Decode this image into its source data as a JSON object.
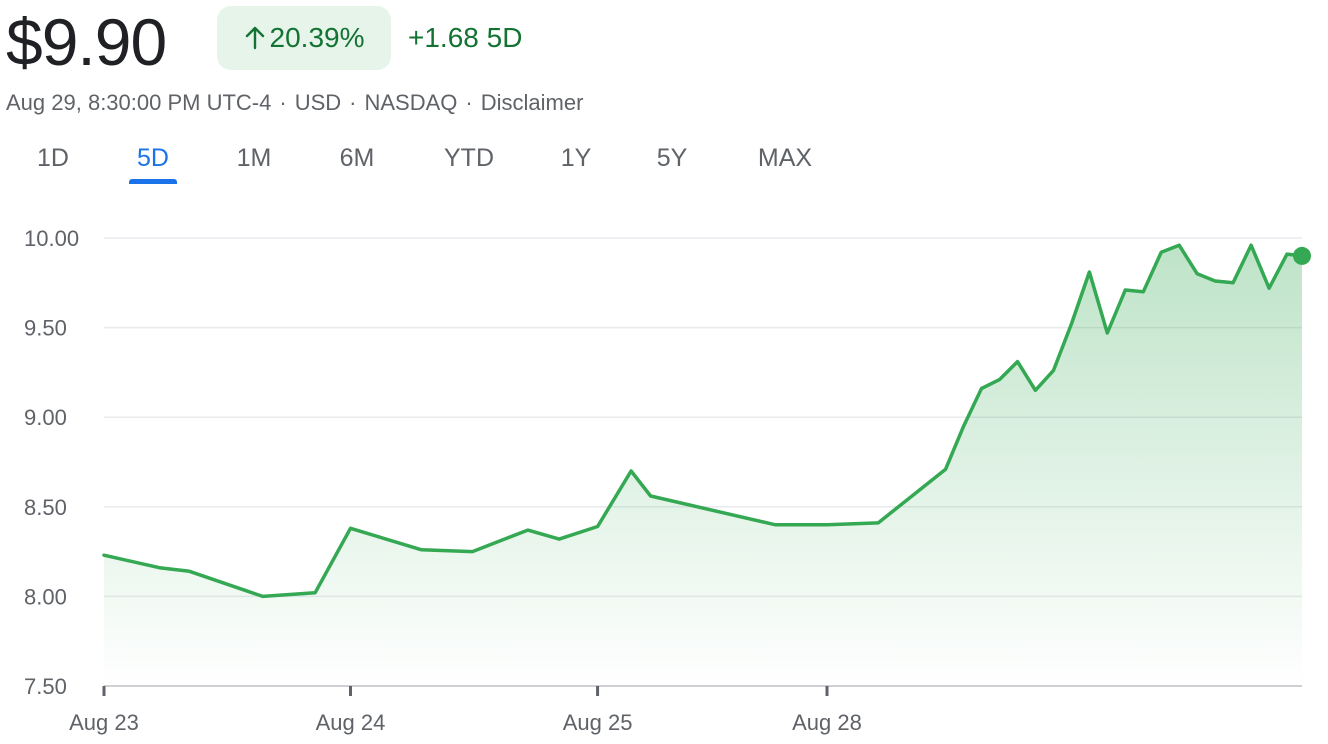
{
  "header": {
    "price": "$9.90",
    "pct_change": "20.39%",
    "abs_change": "+1.68 5D",
    "trend_color": "#137333"
  },
  "meta": {
    "timestamp": "Aug 29, 8:30:00 PM UTC-4",
    "currency": "USD",
    "exchange": "NASDAQ",
    "disclaimer": "Disclaimer",
    "separator": "·"
  },
  "tabs": [
    {
      "label": "1D",
      "active": false
    },
    {
      "label": "5D",
      "active": true
    },
    {
      "label": "1M",
      "active": false
    },
    {
      "label": "6M",
      "active": false
    },
    {
      "label": "YTD",
      "active": false
    },
    {
      "label": "1Y",
      "active": false
    },
    {
      "label": "5Y",
      "active": false
    },
    {
      "label": "MAX",
      "active": false
    }
  ],
  "icons": {
    "up_arrow": "arrow-up-icon"
  },
  "colors": {
    "line": "#34a853",
    "fill_top": "#34a853",
    "active_tab": "#1a73e8",
    "pill_bg": "#e6f4ea"
  },
  "chart_data": {
    "type": "area",
    "ylim": [
      7.5,
      10.0
    ],
    "yticks": [
      "10.00",
      "9.50",
      "9.00",
      "8.50",
      "8.00",
      "7.50"
    ],
    "xtick_labels": [
      "Aug 23",
      "Aug 24",
      "Aug 25",
      "Aug 28"
    ],
    "xtick_positions": [
      0,
      8.23,
      16.48,
      24.14
    ],
    "x_max": 40,
    "grid": true,
    "values": [
      [
        0,
        8.23
      ],
      [
        1.85,
        8.16
      ],
      [
        2.85,
        8.14
      ],
      [
        5.3,
        8.0
      ],
      [
        7.05,
        8.02
      ],
      [
        8.23,
        8.38
      ],
      [
        10.6,
        8.26
      ],
      [
        12.3,
        8.25
      ],
      [
        14.15,
        8.37
      ],
      [
        15.2,
        8.32
      ],
      [
        16.48,
        8.39
      ],
      [
        17.6,
        8.7
      ],
      [
        18.25,
        8.56
      ],
      [
        22.4,
        8.4
      ],
      [
        24.14,
        8.4
      ],
      [
        25.85,
        8.41
      ],
      [
        28.1,
        8.71
      ],
      [
        28.7,
        8.95
      ],
      [
        29.3,
        9.16
      ],
      [
        29.9,
        9.21
      ],
      [
        30.5,
        9.31
      ],
      [
        31.1,
        9.15
      ],
      [
        31.7,
        9.26
      ],
      [
        32.3,
        9.52
      ],
      [
        32.9,
        9.81
      ],
      [
        33.5,
        9.47
      ],
      [
        34.1,
        9.71
      ],
      [
        34.7,
        9.7
      ],
      [
        35.3,
        9.92
      ],
      [
        35.9,
        9.96
      ],
      [
        36.5,
        9.8
      ],
      [
        37.1,
        9.76
      ],
      [
        37.7,
        9.75
      ],
      [
        38.3,
        9.96
      ],
      [
        38.9,
        9.72
      ],
      [
        39.5,
        9.91
      ],
      [
        40,
        9.9
      ]
    ],
    "last_value": 9.9
  }
}
